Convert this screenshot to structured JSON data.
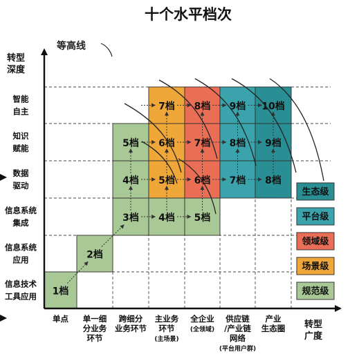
{
  "title": "十个水平档次",
  "contour_label": "等高线",
  "y_axis_title": [
    "转型",
    "深度"
  ],
  "x_axis_title": [
    "转型",
    "广度"
  ],
  "rows": [
    [
      "信息技术",
      "工具应用"
    ],
    [
      "信息系统",
      "应用"
    ],
    [
      "信息系统",
      "集成"
    ],
    [
      "数据",
      "驱动"
    ],
    [
      "知识",
      "赋能"
    ],
    [
      "智能",
      "自主"
    ]
  ],
  "cols": [
    [
      "单点"
    ],
    [
      "单一细",
      "分业务",
      "环节"
    ],
    [
      "跨细分",
      "业务环节"
    ],
    [
      "主业务",
      "环节",
      "(主场景)"
    ],
    [
      "全企业",
      "(全领域)"
    ],
    [
      "供应链",
      "/产业链",
      "网络",
      "(平台用户群)"
    ],
    [
      "产业",
      "生态圈"
    ]
  ],
  "cells": [
    {
      "col": 0,
      "row": 0,
      "label": "1档",
      "level": "规范级"
    },
    {
      "col": 1,
      "row": 1,
      "label": "2档",
      "level": "规范级"
    },
    {
      "col": 2,
      "row": 2,
      "label": "3档",
      "level": "规范级"
    },
    {
      "col": 3,
      "row": 2,
      "label": "4档",
      "level": "规范级"
    },
    {
      "col": 4,
      "row": 2,
      "label": "5档",
      "level": "规范级"
    },
    {
      "col": 2,
      "row": 3,
      "label": "4档",
      "level": "规范级"
    },
    {
      "col": 2,
      "row": 4,
      "label": "5档",
      "level": "规范级"
    },
    {
      "col": 3,
      "row": 3,
      "label": "5档",
      "level": "场景级"
    },
    {
      "col": 3,
      "row": 4,
      "label": "6档",
      "level": "场景级"
    },
    {
      "col": 3,
      "row": 5,
      "label": "7档",
      "level": "场景级"
    },
    {
      "col": 4,
      "row": 3,
      "label": "6档",
      "level": "领域级"
    },
    {
      "col": 4,
      "row": 4,
      "label": "7档",
      "level": "领域级"
    },
    {
      "col": 4,
      "row": 5,
      "label": "8档",
      "level": "领域级"
    },
    {
      "col": 5,
      "row": 3,
      "label": "7档",
      "level": "平台级"
    },
    {
      "col": 5,
      "row": 4,
      "label": "8档",
      "level": "平台级"
    },
    {
      "col": 5,
      "row": 5,
      "label": "9档",
      "level": "平台级"
    },
    {
      "col": 6,
      "row": 3,
      "label": "8档",
      "level": "生态级"
    },
    {
      "col": 6,
      "row": 4,
      "label": "9档",
      "level": "生态级"
    },
    {
      "col": 6,
      "row": 5,
      "label": "10档",
      "level": "生态级"
    }
  ],
  "legend": [
    {
      "label": "生态级",
      "color": "#2a8e95"
    },
    {
      "label": "平台级",
      "color": "#3aa3ac"
    },
    {
      "label": "领域级",
      "color": "#ea6e55"
    },
    {
      "label": "场景级",
      "color": "#f0a73a"
    },
    {
      "label": "规范级",
      "color": "#a8c896"
    }
  ]
}
